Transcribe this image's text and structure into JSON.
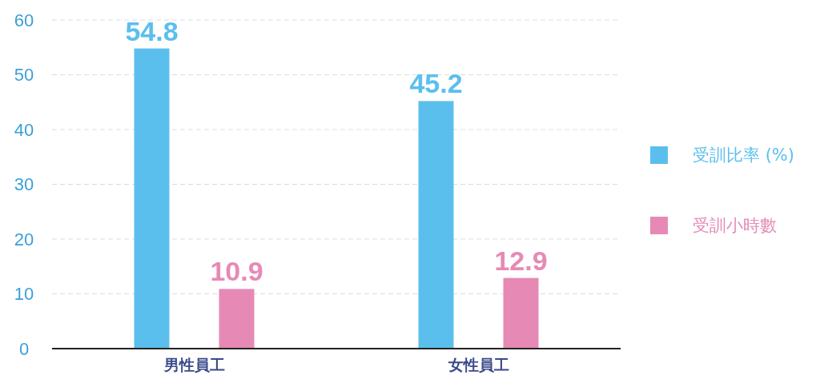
{
  "chart_data": {
    "type": "bar",
    "categories": [
      "男性員工",
      "女性員工"
    ],
    "series": [
      {
        "name": "受訓比率 (%)",
        "color": "#5bbfee",
        "values": [
          54.8,
          45.2
        ]
      },
      {
        "name": "受訓小時數",
        "color": "#e68ab5",
        "values": [
          10.9,
          12.9
        ]
      }
    ],
    "ylim": [
      0,
      60
    ],
    "yticks": [
      0,
      10,
      20,
      30,
      40,
      50,
      60
    ],
    "grid": "y",
    "legend": "right",
    "data_labels": true
  }
}
